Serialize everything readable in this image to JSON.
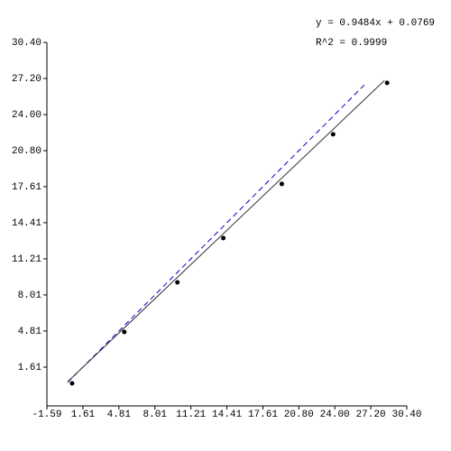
{
  "chart_data": {
    "type": "scatter",
    "annotations": [
      "y = 0.9484x + 0.0769",
      "R^2 = 0.9999"
    ],
    "x": [
      0.65,
      5.29,
      10.01,
      14.09,
      19.29,
      23.85,
      28.65
    ],
    "values": [
      0.17,
      4.73,
      9.13,
      13.05,
      17.85,
      22.25,
      26.81
    ],
    "color": "#000000",
    "fit_line": {
      "x": [
        0.25,
        28.41
      ],
      "values": [
        0.31,
        27.02
      ],
      "color": "#333333"
    },
    "reference_line": {
      "x": [
        0.25,
        26.65
      ],
      "values": [
        0.25,
        26.65
      ],
      "color": "#0000cc"
    },
    "xlim": [
      -1.59,
      30.4
    ],
    "ylim": [
      -1.59,
      30.4
    ],
    "xticks": [
      -1.59,
      1.61,
      4.81,
      8.01,
      11.21,
      14.41,
      17.61,
      {
        "value": 20.8,
        "label": "20.80"
      },
      {
        "value": 24,
        "label": "24.00"
      },
      {
        "value": 27.2,
        "label": "27.20"
      },
      {
        "value": 30.4,
        "label": "30.40"
      }
    ],
    "yticks": [
      1.61,
      4.81,
      8.01,
      11.21,
      14.41,
      17.61,
      {
        "value": 20.8,
        "label": "20.80"
      },
      {
        "value": 24,
        "label": "24.00"
      },
      {
        "value": 27.2,
        "label": "27.20"
      },
      {
        "value": 30.4,
        "label": "30.40"
      }
    ]
  }
}
